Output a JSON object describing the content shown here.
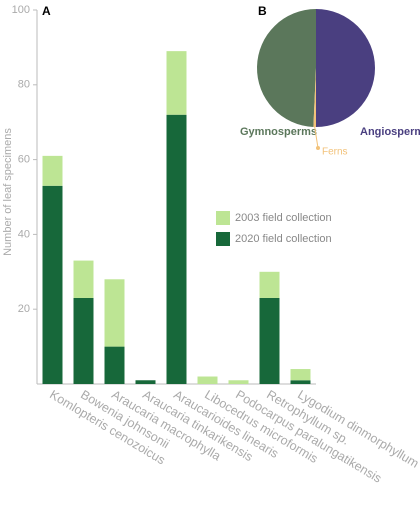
{
  "chart_data": [
    {
      "type": "bar",
      "stacked": true,
      "panel_label": "A",
      "y_label": "Number of leaf specimens",
      "categories": [
        "Komlopteris cenozoicus",
        "Bowenia johnsonii",
        "Araucaria macrophylla",
        "Araucaria tinkarikensis",
        "Araucarioides linearis",
        "Libocedrus microformis",
        "Podocarpus paralungatikensis",
        "Retrophyllum sp.",
        "Lygodium dinmorphyllum"
      ],
      "series": [
        {
          "name": "2020 field collection",
          "color": "#17683a",
          "values": [
            53,
            23,
            10,
            1,
            72,
            0,
            0,
            23,
            1
          ]
        },
        {
          "name": "2003 field collection",
          "color": "#bde594",
          "values": [
            8,
            10,
            18,
            0,
            17,
            2,
            1,
            7,
            3
          ]
        }
      ],
      "ylim": [
        0,
        100
      ],
      "yticks": [
        20,
        40,
        60,
        80,
        100
      ]
    },
    {
      "type": "pie",
      "panel_label": "B",
      "categories": [
        "Gymnosperms",
        "Ferns",
        "Angiosperms"
      ],
      "values": [
        49.3,
        0.7,
        50
      ],
      "colors": [
        "#5b775b",
        "#f2c27a",
        "#4a3f80"
      ]
    }
  ]
}
